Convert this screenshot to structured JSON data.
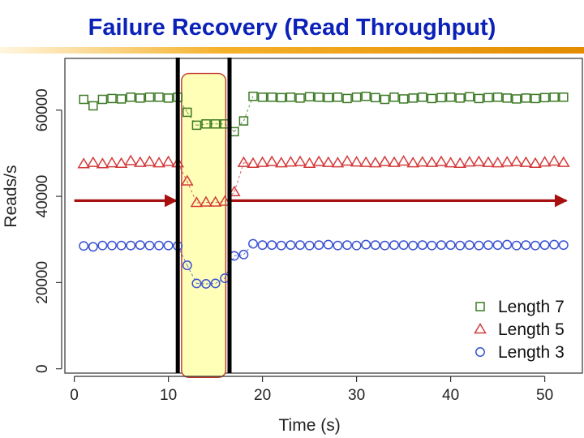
{
  "slide": {
    "title": "Failure Recovery (Read Throughput)"
  },
  "chart_data": {
    "type": "scatter",
    "title": "",
    "xlabel": "Time (s)",
    "ylabel": "Reads/s",
    "xlim": [
      -1,
      54
    ],
    "ylim": [
      -1000,
      72000
    ],
    "x_ticks": [
      "0",
      "10",
      "20",
      "30",
      "40",
      "50"
    ],
    "x_tick_values": [
      0,
      10,
      20,
      30,
      40,
      50
    ],
    "y_ticks": [
      "0",
      "20000",
      "40000",
      "60000"
    ],
    "y_tick_values": [
      0,
      20000,
      40000,
      60000
    ],
    "legend": {
      "position": "bottom-right"
    },
    "failure_lines_x": [
      11,
      16.5
    ],
    "recovery_window": [
      11.4,
      16.1
    ],
    "reference_arrow_y": 39000,
    "series": [
      {
        "name": "Length 7",
        "marker": "square",
        "color": "#3d7a26",
        "x": [
          1,
          2,
          3,
          4,
          5,
          6,
          7,
          8,
          9,
          10,
          11,
          12,
          13,
          14,
          15,
          16,
          17,
          18,
          19,
          20,
          21,
          22,
          23,
          24,
          25,
          26,
          27,
          28,
          29,
          30,
          31,
          32,
          33,
          34,
          35,
          36,
          37,
          38,
          39,
          40,
          41,
          42,
          43,
          44,
          45,
          46,
          47,
          48,
          49,
          50,
          51,
          52
        ],
        "y": [
          62500,
          61000,
          62500,
          62700,
          62600,
          63000,
          62800,
          63000,
          63000,
          62800,
          63000,
          59500,
          56500,
          56800,
          56800,
          56800,
          55000,
          57500,
          63200,
          63000,
          63000,
          62900,
          63000,
          62800,
          63100,
          63000,
          62900,
          63000,
          62700,
          63000,
          63200,
          62900,
          62500,
          63000,
          62600,
          62800,
          63000,
          62700,
          62900,
          63000,
          62800,
          63100,
          62700,
          62900,
          63000,
          62800,
          62600,
          62800,
          62700,
          62900,
          63000,
          63000
        ]
      },
      {
        "name": "Length 5",
        "marker": "triangle",
        "color": "#d43b3b",
        "x": [
          1,
          2,
          3,
          4,
          5,
          6,
          7,
          8,
          9,
          10,
          11,
          12,
          13,
          14,
          15,
          16,
          17,
          18,
          19,
          20,
          21,
          22,
          23,
          24,
          25,
          26,
          27,
          28,
          29,
          30,
          31,
          32,
          33,
          34,
          35,
          36,
          37,
          38,
          39,
          40,
          41,
          42,
          43,
          44,
          45,
          46,
          47,
          48,
          49,
          50,
          51,
          52
        ],
        "y": [
          47500,
          47800,
          47500,
          47700,
          47600,
          48200,
          47800,
          48000,
          47700,
          48000,
          47700,
          43500,
          38500,
          38600,
          38600,
          38800,
          41000,
          47800,
          47600,
          47800,
          48000,
          47700,
          47900,
          48000,
          47600,
          48000,
          47800,
          47700,
          48100,
          47900,
          47800,
          47700,
          48000,
          47800,
          48100,
          47700,
          47900,
          47800,
          48000,
          47700,
          47600,
          47900,
          48000,
          47800,
          47700,
          47900,
          48000,
          47800,
          47600,
          47900,
          48100,
          47800
        ]
      },
      {
        "name": "Length 3",
        "marker": "circle",
        "color": "#3a52d1",
        "x": [
          1,
          2,
          3,
          4,
          5,
          6,
          7,
          8,
          9,
          10,
          11,
          12,
          13,
          14,
          15,
          16,
          17,
          18,
          19,
          20,
          21,
          22,
          23,
          24,
          25,
          26,
          27,
          28,
          29,
          30,
          31,
          32,
          33,
          34,
          35,
          36,
          37,
          38,
          39,
          40,
          41,
          42,
          43,
          44,
          45,
          46,
          47,
          48,
          49,
          50,
          51,
          52
        ],
        "y": [
          28500,
          28300,
          28600,
          28600,
          28600,
          28600,
          28700,
          28600,
          28600,
          28600,
          28500,
          24000,
          19800,
          19700,
          19800,
          21000,
          26200,
          26500,
          29000,
          28700,
          28700,
          28600,
          28700,
          28700,
          28600,
          28700,
          28800,
          28600,
          28700,
          28600,
          28800,
          28700,
          28600,
          28700,
          28700,
          28600,
          28700,
          28600,
          28700,
          28700,
          28600,
          28700,
          28600,
          28700,
          28700,
          28800,
          28600,
          28700,
          28600,
          28700,
          28800,
          28700
        ]
      }
    ]
  }
}
